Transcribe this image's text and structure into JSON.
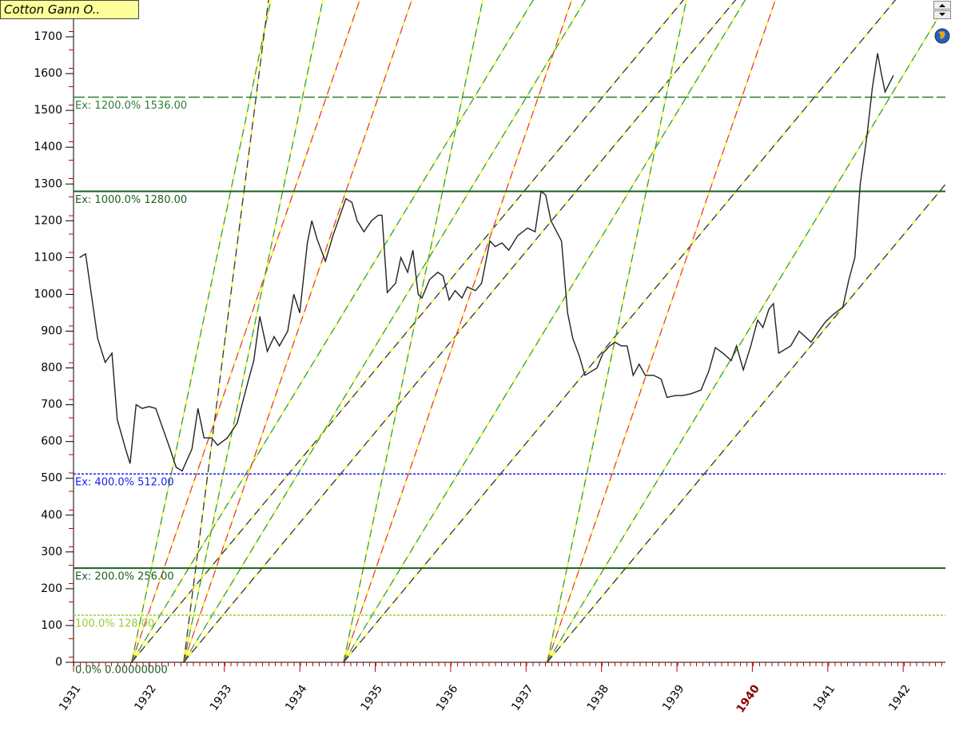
{
  "chart_data": {
    "type": "line",
    "title": "Cotton Gann O..",
    "series": [
      {
        "name": "Cotton",
        "color": "#222222",
        "x": [
          1931.08,
          1931.16,
          1931.32,
          1931.42,
          1931.51,
          1931.58,
          1931.69,
          1931.75,
          1931.83,
          1931.91,
          1932.0,
          1932.09,
          1932.28,
          1932.36,
          1932.44,
          1932.57,
          1932.65,
          1932.73,
          1932.83,
          1932.91,
          1933.04,
          1933.17,
          1933.31,
          1933.39,
          1933.47,
          1933.57,
          1933.66,
          1933.73,
          1933.84,
          1933.92,
          1934.0,
          1934.1,
          1934.16,
          1934.23,
          1934.34,
          1934.44,
          1934.56,
          1934.61,
          1934.69,
          1934.76,
          1934.85,
          1934.95,
          1935.04,
          1935.09,
          1935.16,
          1935.27,
          1935.34,
          1935.43,
          1935.5,
          1935.57,
          1935.62,
          1935.72,
          1935.83,
          1935.9,
          1935.98,
          1936.06,
          1936.15,
          1936.22,
          1936.33,
          1936.41,
          1936.52,
          1936.59,
          1936.68,
          1936.77,
          1936.89,
          1937.02,
          1937.12,
          1937.2,
          1937.26,
          1937.33,
          1937.47,
          1937.55,
          1937.62,
          1937.71,
          1937.78,
          1937.86,
          1937.94,
          1938.02,
          1938.11,
          1938.18,
          1938.26,
          1938.34,
          1938.42,
          1938.5,
          1938.58,
          1938.69,
          1938.79,
          1938.87,
          1938.98,
          1939.08,
          1939.19,
          1939.32,
          1939.42,
          1939.51,
          1939.61,
          1939.72,
          1939.79,
          1939.88,
          1939.98,
          1940.07,
          1940.14,
          1940.22,
          1940.28,
          1940.35,
          1940.51,
          1940.62,
          1940.78,
          1940.88,
          1940.97,
          1941.07,
          1941.2,
          1941.28,
          1941.36,
          1941.43,
          1941.52,
          1941.59,
          1941.66,
          1941.71,
          1941.76,
          1941.87
        ],
        "values": [
          1100,
          1110,
          880,
          815,
          840,
          660,
          580,
          540,
          700,
          690,
          695,
          690,
          580,
          530,
          520,
          580,
          690,
          610,
          610,
          590,
          610,
          650,
          760,
          820,
          940,
          845,
          885,
          860,
          900,
          1000,
          950,
          1140,
          1200,
          1150,
          1090,
          1160,
          1230,
          1260,
          1250,
          1200,
          1170,
          1200,
          1215,
          1215,
          1005,
          1030,
          1100,
          1060,
          1120,
          1000,
          990,
          1040,
          1060,
          1050,
          985,
          1010,
          990,
          1020,
          1010,
          1030,
          1145,
          1130,
          1140,
          1120,
          1160,
          1180,
          1170,
          1280,
          1270,
          1200,
          1145,
          950,
          880,
          830,
          780,
          790,
          800,
          840,
          860,
          870,
          860,
          860,
          780,
          810,
          780,
          780,
          770,
          720,
          725,
          725,
          730,
          740,
          790,
          855,
          840,
          820,
          860,
          795,
          860,
          930,
          910,
          960,
          975,
          840,
          860,
          900,
          870,
          900,
          925,
          945,
          965,
          1040,
          1100,
          1300,
          1430,
          1560,
          1655,
          1600,
          1550,
          1595
        ]
      }
    ],
    "levels": [
      {
        "value": 1536,
        "label": "Ex: 1200.0% 1536.00",
        "color": "#2e7d32",
        "style": "dash"
      },
      {
        "value": 1280,
        "label": "Ex: 1000.0% 1280.00",
        "color": "#1b5e20",
        "style": "solid"
      },
      {
        "value": 512,
        "label": "Ex: 400.0% 512.00",
        "color": "#1a1aff",
        "style": "dot"
      },
      {
        "value": 256,
        "label": "Ex: 200.0% 256.00",
        "color": "#1b5e20",
        "style": "solid"
      },
      {
        "value": 128,
        "label": "100.0% 128.00",
        "color": "#9acd32",
        "style": "dot"
      },
      {
        "value": 0,
        "label": "0.0% 0.00000000",
        "color": "#1b5e20",
        "style": "none"
      }
    ],
    "fans": [
      {
        "x": 1931.77,
        "y": 0,
        "lines": [
          {
            "slope": 975,
            "color": "#2e9e2e"
          },
          {
            "slope": 595,
            "color": "#e53935"
          },
          {
            "slope": 338,
            "color": "#2e9e2e"
          },
          {
            "slope": 246,
            "color": "#333333"
          }
        ]
      },
      {
        "x": 1932.46,
        "y": 0,
        "lines": [
          {
            "slope": 1600,
            "color": "#333333"
          },
          {
            "slope": 975,
            "color": "#2e9e2e"
          },
          {
            "slope": 595,
            "color": "#e53935"
          },
          {
            "slope": 338,
            "color": "#2e9e2e"
          },
          {
            "slope": 246,
            "color": "#333333"
          }
        ]
      },
      {
        "x": 1934.58,
        "y": 0,
        "lines": [
          {
            "slope": 975,
            "color": "#2e9e2e"
          },
          {
            "slope": 595,
            "color": "#e53935"
          },
          {
            "slope": 338,
            "color": "#2e9e2e"
          },
          {
            "slope": 246,
            "color": "#333333"
          }
        ]
      },
      {
        "x": 1937.28,
        "y": 0,
        "lines": [
          {
            "slope": 975,
            "color": "#2e9e2e"
          },
          {
            "slope": 595,
            "color": "#e53935"
          },
          {
            "slope": 338,
            "color": "#2e9e2e"
          },
          {
            "slope": 246,
            "color": "#333333"
          }
        ]
      }
    ],
    "xlim": [
      1931,
      1942.56
    ],
    "ylim": [
      0,
      1800
    ],
    "xticks": [
      1931,
      1932,
      1933,
      1934,
      1935,
      1936,
      1937,
      1938,
      1939,
      1940,
      1941,
      1942
    ],
    "yticks": [
      0,
      100,
      200,
      300,
      400,
      500,
      600,
      700,
      800,
      900,
      1000,
      1100,
      1200,
      1300,
      1400,
      1500,
      1600,
      1700
    ]
  }
}
